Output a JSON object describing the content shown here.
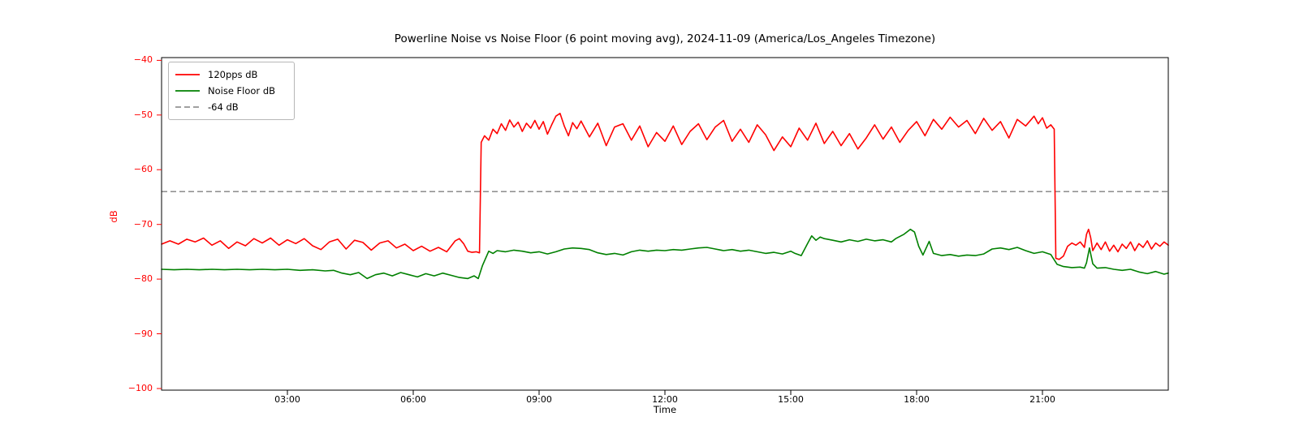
{
  "chart_data": {
    "type": "line",
    "title": "Powerline Noise vs Noise Floor (6 point moving avg), 2024-11-09 (America/Los_Angeles Timezone)",
    "xlabel": "Time",
    "ylabel": "dB",
    "x_unit": "hours_of_day_local",
    "xlim_hours": [
      0,
      24
    ],
    "ylim": [
      -100.3,
      -39.5
    ],
    "grid": false,
    "legend_position": "upper left",
    "xticks": {
      "hours": [
        3,
        6,
        9,
        12,
        15,
        18,
        21
      ],
      "labels": [
        "03:00",
        "06:00",
        "09:00",
        "12:00",
        "15:00",
        "18:00",
        "21:00"
      ],
      "color": "#000000"
    },
    "yticks": {
      "values": [
        -40,
        -50,
        -60,
        -70,
        -80,
        -90,
        -100
      ],
      "labels": [
        "−40",
        "−50",
        "−60",
        "−70",
        "−80",
        "−90",
        "−100"
      ],
      "color": "#ff0000"
    },
    "axis_label_colors": {
      "x": "#000000",
      "y": "#ff0000"
    },
    "threshold_line": {
      "label": "-64 dB",
      "value": -64,
      "color": "#808080",
      "style": "dashed"
    },
    "legend": {
      "entries": [
        {
          "label": "120pps dB",
          "color": "#ff0000",
          "style": "solid"
        },
        {
          "label": "Noise Floor dB",
          "color": "#008000",
          "style": "solid"
        },
        {
          "label": "-64 dB",
          "color": "#808080",
          "style": "dashed"
        }
      ]
    },
    "series": [
      {
        "name": "120pps dB",
        "color": "#ff0000",
        "style": "solid",
        "points": [
          [
            0.0,
            -73.6
          ],
          [
            0.2,
            -73.0
          ],
          [
            0.4,
            -73.6
          ],
          [
            0.6,
            -72.7
          ],
          [
            0.8,
            -73.2
          ],
          [
            1.0,
            -72.5
          ],
          [
            1.2,
            -73.8
          ],
          [
            1.4,
            -73.0
          ],
          [
            1.6,
            -74.4
          ],
          [
            1.8,
            -73.2
          ],
          [
            2.0,
            -73.9
          ],
          [
            2.2,
            -72.6
          ],
          [
            2.4,
            -73.4
          ],
          [
            2.6,
            -72.5
          ],
          [
            2.8,
            -73.8
          ],
          [
            3.0,
            -72.8
          ],
          [
            3.2,
            -73.5
          ],
          [
            3.4,
            -72.6
          ],
          [
            3.6,
            -73.9
          ],
          [
            3.8,
            -74.6
          ],
          [
            4.0,
            -73.2
          ],
          [
            4.2,
            -72.7
          ],
          [
            4.4,
            -74.5
          ],
          [
            4.6,
            -72.9
          ],
          [
            4.8,
            -73.3
          ],
          [
            5.0,
            -74.7
          ],
          [
            5.2,
            -73.4
          ],
          [
            5.4,
            -73.0
          ],
          [
            5.6,
            -74.3
          ],
          [
            5.8,
            -73.6
          ],
          [
            6.0,
            -74.8
          ],
          [
            6.2,
            -74.0
          ],
          [
            6.4,
            -74.9
          ],
          [
            6.6,
            -74.2
          ],
          [
            6.8,
            -75.0
          ],
          [
            7.0,
            -73.0
          ],
          [
            7.1,
            -72.6
          ],
          [
            7.2,
            -73.5
          ],
          [
            7.3,
            -74.9
          ],
          [
            7.4,
            -75.1
          ],
          [
            7.5,
            -75.0
          ],
          [
            7.58,
            -75.2
          ],
          [
            7.62,
            -55.0
          ],
          [
            7.7,
            -53.8
          ],
          [
            7.8,
            -54.6
          ],
          [
            7.9,
            -52.6
          ],
          [
            8.0,
            -53.4
          ],
          [
            8.1,
            -51.6
          ],
          [
            8.2,
            -52.8
          ],
          [
            8.3,
            -50.9
          ],
          [
            8.4,
            -52.2
          ],
          [
            8.5,
            -51.3
          ],
          [
            8.6,
            -53.0
          ],
          [
            8.7,
            -51.5
          ],
          [
            8.8,
            -52.4
          ],
          [
            8.9,
            -51.0
          ],
          [
            9.0,
            -52.6
          ],
          [
            9.1,
            -51.2
          ],
          [
            9.2,
            -53.5
          ],
          [
            9.3,
            -51.8
          ],
          [
            9.4,
            -50.2
          ],
          [
            9.5,
            -49.7
          ],
          [
            9.6,
            -52.0
          ],
          [
            9.7,
            -53.8
          ],
          [
            9.8,
            -51.4
          ],
          [
            9.9,
            -52.5
          ],
          [
            10.0,
            -51.1
          ],
          [
            10.2,
            -54.0
          ],
          [
            10.4,
            -51.5
          ],
          [
            10.6,
            -55.6
          ],
          [
            10.8,
            -52.2
          ],
          [
            11.0,
            -51.6
          ],
          [
            11.2,
            -54.6
          ],
          [
            11.4,
            -52.0
          ],
          [
            11.6,
            -55.8
          ],
          [
            11.8,
            -53.2
          ],
          [
            12.0,
            -54.8
          ],
          [
            12.2,
            -52.0
          ],
          [
            12.4,
            -55.4
          ],
          [
            12.6,
            -53.0
          ],
          [
            12.8,
            -51.6
          ],
          [
            13.0,
            -54.5
          ],
          [
            13.2,
            -52.2
          ],
          [
            13.4,
            -51.0
          ],
          [
            13.6,
            -54.8
          ],
          [
            13.8,
            -52.6
          ],
          [
            14.0,
            -55.0
          ],
          [
            14.2,
            -51.8
          ],
          [
            14.4,
            -53.6
          ],
          [
            14.6,
            -56.5
          ],
          [
            14.8,
            -54.0
          ],
          [
            15.0,
            -55.8
          ],
          [
            15.2,
            -52.4
          ],
          [
            15.4,
            -54.6
          ],
          [
            15.6,
            -51.5
          ],
          [
            15.8,
            -55.2
          ],
          [
            16.0,
            -53.0
          ],
          [
            16.2,
            -55.6
          ],
          [
            16.4,
            -53.4
          ],
          [
            16.6,
            -56.2
          ],
          [
            16.8,
            -54.2
          ],
          [
            17.0,
            -51.8
          ],
          [
            17.2,
            -54.4
          ],
          [
            17.4,
            -52.2
          ],
          [
            17.6,
            -55.0
          ],
          [
            17.8,
            -52.8
          ],
          [
            18.0,
            -51.2
          ],
          [
            18.2,
            -53.8
          ],
          [
            18.4,
            -50.8
          ],
          [
            18.6,
            -52.6
          ],
          [
            18.8,
            -50.4
          ],
          [
            19.0,
            -52.2
          ],
          [
            19.2,
            -51.0
          ],
          [
            19.4,
            -53.4
          ],
          [
            19.6,
            -50.6
          ],
          [
            19.8,
            -52.8
          ],
          [
            20.0,
            -51.2
          ],
          [
            20.2,
            -54.2
          ],
          [
            20.4,
            -50.8
          ],
          [
            20.6,
            -52.0
          ],
          [
            20.8,
            -50.2
          ],
          [
            20.9,
            -51.6
          ],
          [
            21.0,
            -50.5
          ],
          [
            21.1,
            -52.4
          ],
          [
            21.2,
            -51.8
          ],
          [
            21.28,
            -52.6
          ],
          [
            21.32,
            -76.2
          ],
          [
            21.4,
            -76.4
          ],
          [
            21.5,
            -75.8
          ],
          [
            21.6,
            -74.0
          ],
          [
            21.7,
            -73.4
          ],
          [
            21.8,
            -73.8
          ],
          [
            21.9,
            -73.2
          ],
          [
            22.0,
            -74.2
          ],
          [
            22.05,
            -71.8
          ],
          [
            22.1,
            -70.9
          ],
          [
            22.15,
            -72.4
          ],
          [
            22.2,
            -74.8
          ],
          [
            22.3,
            -73.4
          ],
          [
            22.4,
            -74.6
          ],
          [
            22.5,
            -73.2
          ],
          [
            22.6,
            -74.9
          ],
          [
            22.7,
            -73.8
          ],
          [
            22.8,
            -75.0
          ],
          [
            22.9,
            -73.6
          ],
          [
            23.0,
            -74.4
          ],
          [
            23.1,
            -73.2
          ],
          [
            23.2,
            -74.8
          ],
          [
            23.3,
            -73.5
          ],
          [
            23.4,
            -74.2
          ],
          [
            23.5,
            -73.0
          ],
          [
            23.6,
            -74.5
          ],
          [
            23.7,
            -73.4
          ],
          [
            23.8,
            -74.0
          ],
          [
            23.9,
            -73.2
          ],
          [
            24.0,
            -73.8
          ]
        ]
      },
      {
        "name": "Noise Floor dB",
        "color": "#008000",
        "style": "solid",
        "points": [
          [
            0.0,
            -78.2
          ],
          [
            0.3,
            -78.3
          ],
          [
            0.6,
            -78.2
          ],
          [
            0.9,
            -78.3
          ],
          [
            1.2,
            -78.2
          ],
          [
            1.5,
            -78.3
          ],
          [
            1.8,
            -78.2
          ],
          [
            2.1,
            -78.3
          ],
          [
            2.4,
            -78.2
          ],
          [
            2.7,
            -78.3
          ],
          [
            3.0,
            -78.2
          ],
          [
            3.3,
            -78.4
          ],
          [
            3.6,
            -78.3
          ],
          [
            3.9,
            -78.5
          ],
          [
            4.1,
            -78.4
          ],
          [
            4.3,
            -78.9
          ],
          [
            4.5,
            -79.2
          ],
          [
            4.7,
            -78.8
          ],
          [
            4.9,
            -79.9
          ],
          [
            5.1,
            -79.2
          ],
          [
            5.3,
            -78.9
          ],
          [
            5.5,
            -79.4
          ],
          [
            5.7,
            -78.8
          ],
          [
            5.9,
            -79.2
          ],
          [
            6.1,
            -79.6
          ],
          [
            6.3,
            -79.0
          ],
          [
            6.5,
            -79.4
          ],
          [
            6.7,
            -78.9
          ],
          [
            6.9,
            -79.3
          ],
          [
            7.1,
            -79.7
          ],
          [
            7.3,
            -79.9
          ],
          [
            7.45,
            -79.4
          ],
          [
            7.55,
            -79.9
          ],
          [
            7.65,
            -77.5
          ],
          [
            7.8,
            -74.9
          ],
          [
            7.9,
            -75.3
          ],
          [
            8.0,
            -74.8
          ],
          [
            8.2,
            -75.0
          ],
          [
            8.4,
            -74.7
          ],
          [
            8.6,
            -74.9
          ],
          [
            8.8,
            -75.2
          ],
          [
            9.0,
            -75.0
          ],
          [
            9.2,
            -75.4
          ],
          [
            9.4,
            -75.0
          ],
          [
            9.6,
            -74.5
          ],
          [
            9.8,
            -74.3
          ],
          [
            10.0,
            -74.4
          ],
          [
            10.2,
            -74.6
          ],
          [
            10.4,
            -75.2
          ],
          [
            10.6,
            -75.5
          ],
          [
            10.8,
            -75.3
          ],
          [
            11.0,
            -75.6
          ],
          [
            11.2,
            -75.0
          ],
          [
            11.4,
            -74.7
          ],
          [
            11.6,
            -74.9
          ],
          [
            11.8,
            -74.7
          ],
          [
            12.0,
            -74.8
          ],
          [
            12.2,
            -74.6
          ],
          [
            12.4,
            -74.7
          ],
          [
            12.6,
            -74.5
          ],
          [
            12.8,
            -74.3
          ],
          [
            13.0,
            -74.2
          ],
          [
            13.2,
            -74.5
          ],
          [
            13.4,
            -74.8
          ],
          [
            13.6,
            -74.6
          ],
          [
            13.8,
            -74.9
          ],
          [
            14.0,
            -74.7
          ],
          [
            14.2,
            -75.0
          ],
          [
            14.4,
            -75.3
          ],
          [
            14.6,
            -75.1
          ],
          [
            14.8,
            -75.4
          ],
          [
            15.0,
            -74.9
          ],
          [
            15.1,
            -75.3
          ],
          [
            15.25,
            -75.7
          ],
          [
            15.4,
            -73.5
          ],
          [
            15.5,
            -72.1
          ],
          [
            15.6,
            -72.9
          ],
          [
            15.7,
            -72.3
          ],
          [
            15.8,
            -72.6
          ],
          [
            16.0,
            -72.9
          ],
          [
            16.2,
            -73.2
          ],
          [
            16.4,
            -72.8
          ],
          [
            16.6,
            -73.1
          ],
          [
            16.8,
            -72.7
          ],
          [
            17.0,
            -73.0
          ],
          [
            17.2,
            -72.8
          ],
          [
            17.4,
            -73.2
          ],
          [
            17.5,
            -72.6
          ],
          [
            17.7,
            -71.8
          ],
          [
            17.85,
            -70.9
          ],
          [
            17.95,
            -71.4
          ],
          [
            18.05,
            -74.0
          ],
          [
            18.15,
            -75.6
          ],
          [
            18.3,
            -73.1
          ],
          [
            18.4,
            -75.3
          ],
          [
            18.6,
            -75.7
          ],
          [
            18.8,
            -75.5
          ],
          [
            19.0,
            -75.8
          ],
          [
            19.2,
            -75.6
          ],
          [
            19.4,
            -75.7
          ],
          [
            19.6,
            -75.4
          ],
          [
            19.8,
            -74.5
          ],
          [
            20.0,
            -74.3
          ],
          [
            20.2,
            -74.6
          ],
          [
            20.4,
            -74.2
          ],
          [
            20.6,
            -74.8
          ],
          [
            20.8,
            -75.3
          ],
          [
            21.0,
            -75.0
          ],
          [
            21.2,
            -75.5
          ],
          [
            21.35,
            -77.3
          ],
          [
            21.5,
            -77.7
          ],
          [
            21.7,
            -77.9
          ],
          [
            21.9,
            -77.8
          ],
          [
            22.0,
            -78.0
          ],
          [
            22.05,
            -77.0
          ],
          [
            22.12,
            -74.3
          ],
          [
            22.2,
            -77.2
          ],
          [
            22.3,
            -78.0
          ],
          [
            22.5,
            -77.9
          ],
          [
            22.7,
            -78.2
          ],
          [
            22.9,
            -78.4
          ],
          [
            23.1,
            -78.2
          ],
          [
            23.3,
            -78.7
          ],
          [
            23.5,
            -79.0
          ],
          [
            23.7,
            -78.6
          ],
          [
            23.9,
            -79.1
          ],
          [
            24.0,
            -78.9
          ]
        ]
      }
    ]
  }
}
